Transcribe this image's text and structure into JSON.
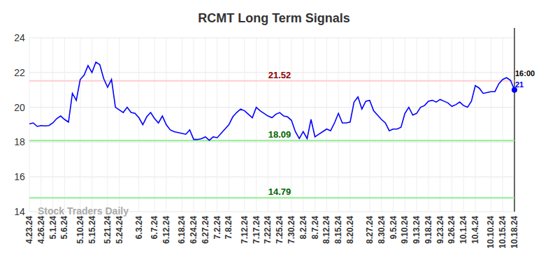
{
  "chart_data": {
    "type": "line",
    "title": "RCMT Long Term Signals",
    "watermark": "Stock Traders Daily",
    "color": "#0000ff",
    "grid": true,
    "ylim": [
      14,
      24
    ],
    "yticks": [
      14,
      16,
      18,
      20,
      22,
      24
    ],
    "categories": [
      "4.23.24",
      null,
      null,
      "4.26.24",
      null,
      null,
      "5.1.24",
      null,
      null,
      "5.6.24",
      null,
      null,
      null,
      "5.10.24",
      null,
      null,
      "5.15.24",
      null,
      null,
      null,
      "5.21.24",
      null,
      null,
      "5.24.24",
      null,
      null,
      null,
      null,
      "6.3.24",
      null,
      null,
      null,
      "6.7.24",
      null,
      null,
      "6.12.24",
      null,
      null,
      null,
      "6.18.24",
      null,
      null,
      "6.24.24",
      null,
      null,
      "6.27.24",
      null,
      null,
      "7.2.24",
      null,
      null,
      "7.8.24",
      null,
      null,
      null,
      "7.12.24",
      null,
      null,
      "7.17.24",
      null,
      null,
      "7.22.24",
      null,
      null,
      "7.25.24",
      null,
      null,
      "7.30.24",
      null,
      null,
      "8.2.24",
      null,
      null,
      "8.7.24",
      null,
      null,
      "8.12.24",
      null,
      null,
      "8.15.24",
      null,
      null,
      "8.20.24",
      null,
      null,
      null,
      null,
      "8.27.24",
      null,
      null,
      "8.30.24",
      null,
      null,
      "9.5.24",
      null,
      null,
      "9.10.24",
      null,
      null,
      "9.13.24",
      null,
      null,
      "9.18.24",
      null,
      null,
      "9.23.24",
      null,
      null,
      "9.26.24",
      null,
      null,
      "10.1.24",
      null,
      null,
      "10.4.24",
      null,
      null,
      null,
      "10.10.24",
      null,
      null,
      "10.15.24",
      null,
      null,
      "10.18.24"
    ],
    "values": [
      19.05,
      19.1,
      18.9,
      18.95,
      18.93,
      18.95,
      19.1,
      19.35,
      19.5,
      19.3,
      19.15,
      20.8,
      20.4,
      21.6,
      21.85,
      22.4,
      22.0,
      22.6,
      22.45,
      21.65,
      21.15,
      21.6,
      20.0,
      19.85,
      19.7,
      20.0,
      19.7,
      19.65,
      19.4,
      19.0,
      19.45,
      19.7,
      19.35,
      19.1,
      19.5,
      19.0,
      18.7,
      18.6,
      18.55,
      18.5,
      18.45,
      18.7,
      18.15,
      18.15,
      18.2,
      18.3,
      18.1,
      18.3,
      18.25,
      18.5,
      18.75,
      19.0,
      19.45,
      19.7,
      19.9,
      19.8,
      19.6,
      19.4,
      20.0,
      19.8,
      19.65,
      19.5,
      19.4,
      19.6,
      19.7,
      19.5,
      19.45,
      19.25,
      18.6,
      18.2,
      18.6,
      18.2,
      19.3,
      18.3,
      18.45,
      18.6,
      18.75,
      18.65,
      19.1,
      19.65,
      19.1,
      19.1,
      19.15,
      20.3,
      20.6,
      19.9,
      20.35,
      20.4,
      19.8,
      19.55,
      19.3,
      19.1,
      18.65,
      18.75,
      18.75,
      18.85,
      19.65,
      20.0,
      19.55,
      19.65,
      20.0,
      20.1,
      20.35,
      20.4,
      20.3,
      20.45,
      20.35,
      20.25,
      20.05,
      20.15,
      20.3,
      20.1,
      20.0,
      20.35,
      21.25,
      21.1,
      20.8,
      20.85,
      20.9,
      20.9,
      21.35,
      21.6,
      21.7,
      21.55,
      21.0
    ],
    "reference_lines": [
      {
        "value": 21.52,
        "color": "#ffcccc",
        "label_color": "#8b0000"
      },
      {
        "value": 18.09,
        "color": "#90ee90",
        "label_color": "#006400"
      },
      {
        "value": 14.79,
        "color": "#90ee90",
        "label_color": "#006400"
      }
    ],
    "end_label": {
      "text": "16:00",
      "value": 21
    }
  }
}
